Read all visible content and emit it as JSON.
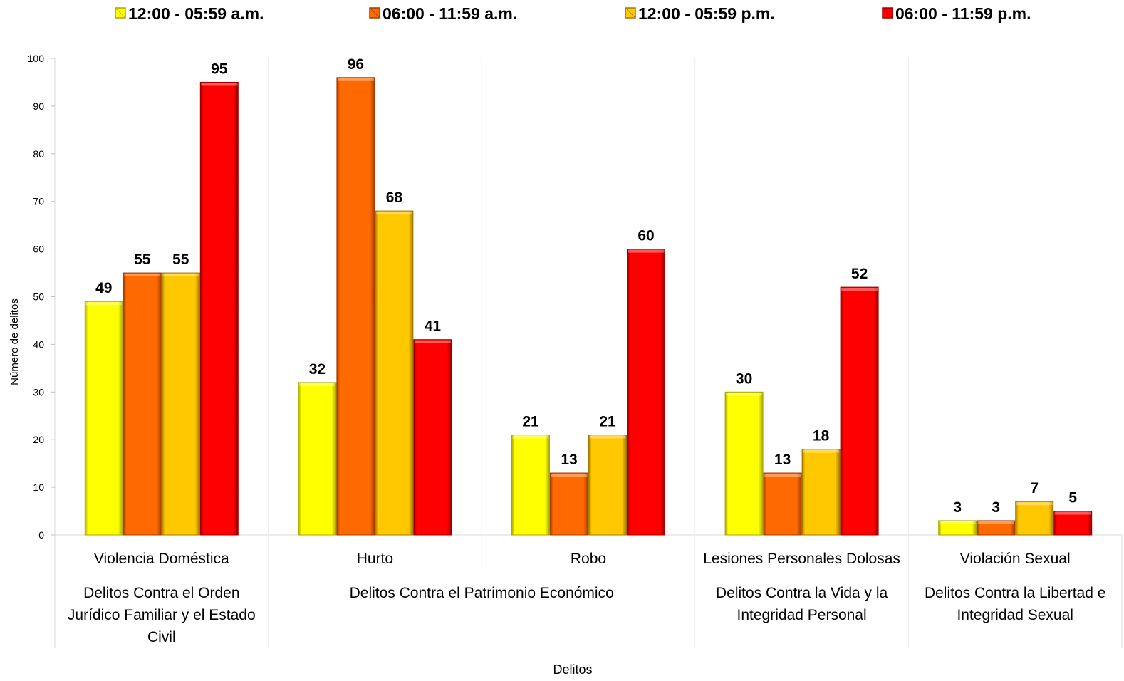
{
  "colors": {
    "series": [
      "#ffff00",
      "#ff6a00",
      "#ffc800",
      "#ff0000"
    ],
    "edge": [
      "#a8a800",
      "#a33c00",
      "#a37a00",
      "#9a0000"
    ]
  },
  "chart_data": {
    "type": "bar",
    "ylabel": "Número de delitos",
    "xlabel": "Delitos",
    "ylim": [
      0,
      100
    ],
    "yticks": [
      0,
      10,
      20,
      30,
      40,
      50,
      60,
      70,
      80,
      90,
      100
    ],
    "grid": false,
    "legend_position": "top",
    "categories": [
      "Violencia Doméstica",
      "Hurto",
      "Robo",
      "Lesiones Personales Dolosas",
      "Violación Sexual"
    ],
    "groups": [
      {
        "label": [
          "Delitos Contra el Orden",
          "Jurídico Familiar y el Estado",
          "Civil"
        ],
        "categories": [
          "Violencia Doméstica"
        ]
      },
      {
        "label": [
          "Delitos Contra el Patrimonio Económico"
        ],
        "categories": [
          "Hurto",
          "Robo"
        ]
      },
      {
        "label": [
          "Delitos Contra la Vida y la",
          "Integridad Personal"
        ],
        "categories": [
          "Lesiones Personales Dolosas"
        ]
      },
      {
        "label": [
          "Delitos Contra la Libertad e",
          "Integridad Sexual"
        ],
        "categories": [
          "Violación Sexual"
        ]
      }
    ],
    "series": [
      {
        "name": "12:00 - 05:59 a.m.",
        "values": [
          49,
          32,
          21,
          30,
          3
        ]
      },
      {
        "name": "06:00 - 11:59 a.m.",
        "values": [
          55,
          96,
          13,
          13,
          3
        ]
      },
      {
        "name": "12:00 - 05:59 p.m.",
        "values": [
          55,
          68,
          21,
          18,
          7
        ]
      },
      {
        "name": "06:00 - 11:59 p.m.",
        "values": [
          95,
          41,
          60,
          52,
          5
        ]
      }
    ]
  }
}
